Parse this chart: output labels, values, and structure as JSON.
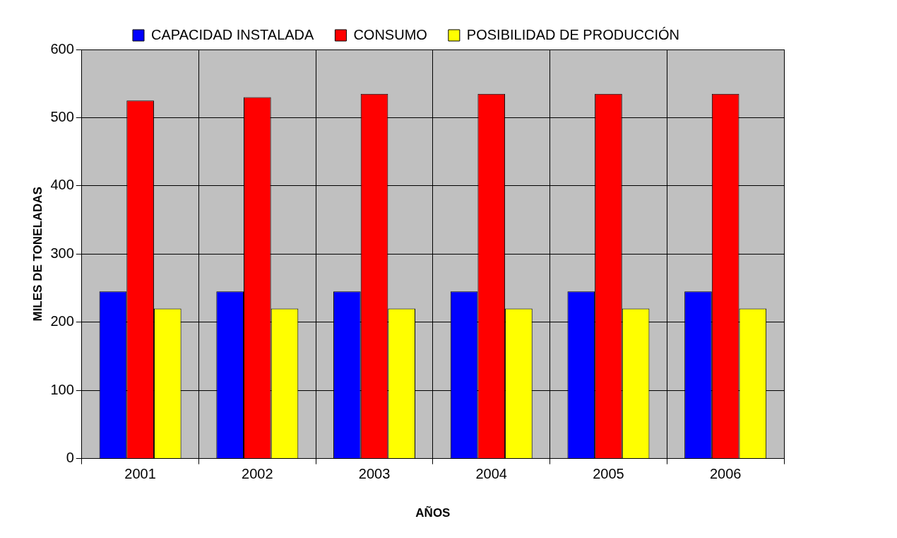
{
  "chart_data": {
    "type": "bar",
    "xlabel": "AÑOS",
    "ylabel": "MILES DE TONELADAS",
    "categories": [
      "2001",
      "2002",
      "2003",
      "2004",
      "2005",
      "2006"
    ],
    "series": [
      {
        "name": "CAPACIDAD INSTALADA",
        "color": "#0000ff",
        "values": [
          245,
          245,
          245,
          245,
          245,
          245
        ]
      },
      {
        "name": "CONSUMO",
        "color": "#ff0000",
        "values": [
          525,
          530,
          535,
          535,
          535,
          535
        ]
      },
      {
        "name": "POSIBILIDAD DE PRODUCCIÓN",
        "color": "#ffff00",
        "values": [
          220,
          220,
          220,
          220,
          220,
          220
        ]
      }
    ],
    "ylim": [
      0,
      600
    ],
    "yticks": [
      0,
      100,
      200,
      300,
      400,
      500,
      600
    ],
    "grid": true,
    "legend": "top"
  }
}
